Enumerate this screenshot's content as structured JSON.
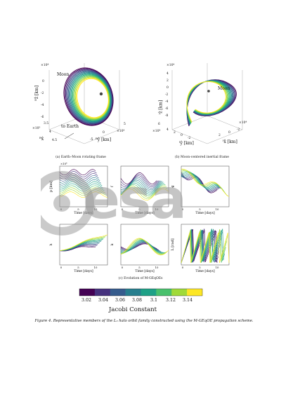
{
  "top_left": {
    "exp_z": "×10⁴",
    "exp_x": "×10⁵",
    "exp_y": "×10⁴",
    "moon_label": "Moon",
    "earth_label": "to Earth",
    "zlabel": "ᴮẑ [km]",
    "xlabel": "ᴮx̂",
    "ylabel": "ᴮŷ [km]",
    "zticks": [
      "0",
      "-2",
      "-4",
      "-6"
    ],
    "xticks": [
      "3.5",
      "4",
      "4.5"
    ],
    "yticks": [
      "5",
      "0",
      "-5"
    ],
    "caption": "(a) Earth–Moon rotating frame"
  },
  "top_right": {
    "exp_z": "×10⁴",
    "exp_x": "×10⁴",
    "exp_y": "×10⁴",
    "moon_label": "Moon",
    "zlabel": "ᴵẑ [km]",
    "xlabel": "ᴵx̂ [km]",
    "ylabel": "ᴵŷ [km]",
    "zticks": [
      "4",
      "2",
      "0",
      "-2",
      "-4",
      "-6",
      "-8"
    ],
    "yticks": [
      "6",
      "4",
      "2",
      "0",
      "-2"
    ],
    "xticks": [
      "2",
      "0",
      "-2"
    ],
    "caption": "(b) Moon-centered inertial frame"
  },
  "grid": {
    "xlabel": "Time [days]",
    "ylabels": [
      "p [km]",
      "f",
      "g",
      "h",
      "k",
      "L [rad]"
    ],
    "exponent": "×10⁴",
    "caption": "(c) Evolution of M-GEqOEs"
  },
  "colorbar": {
    "ticks": [
      "3.02",
      "3.04",
      "3.06",
      "3.08",
      "3.1",
      "3.12",
      "3.14"
    ],
    "title": "Jacobi Constant",
    "colors": [
      "#440154",
      "#46327e",
      "#365c8d",
      "#277f8e",
      "#1fa187",
      "#4ac16d",
      "#a0da39",
      "#fde725"
    ]
  },
  "watermark": "esa",
  "figure_caption": "Figure 4. Representative members of the L₂ halo orbit family constructed using the M-GEqOE propagation scheme."
}
